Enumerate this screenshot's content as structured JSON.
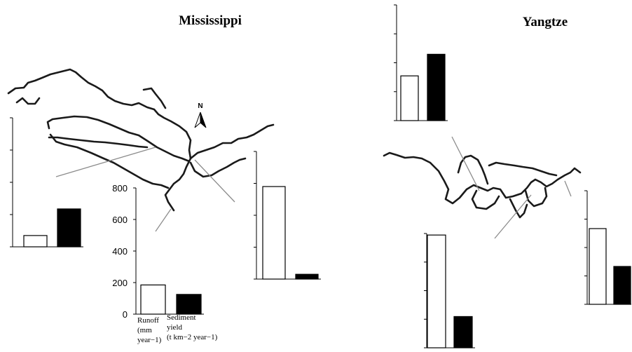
{
  "titles": {
    "left": "Mississippi",
    "right": "Yangtze"
  },
  "compass_label": "N",
  "legend_labels": {
    "runoff": [
      "Runoff",
      "(mm",
      "year−1)"
    ],
    "sediment": [
      "Sediment",
      "yield",
      "(t km−2 year−1)"
    ]
  },
  "chart_data": [
    {
      "id": "mississippi-main",
      "type": "bar",
      "river": "Mississippi",
      "categories": [
        "Runoff (mm year−1)",
        "Sediment yield (t km−2 year−1)"
      ],
      "values": [
        185,
        125
      ],
      "yticks": [
        0,
        200,
        400,
        600,
        800
      ],
      "ylim": [
        0,
        800
      ]
    },
    {
      "id": "mississippi-upper",
      "type": "bar",
      "river": "Mississippi",
      "categories": [
        "Runoff",
        "Sediment yield"
      ],
      "values": [
        70,
        235
      ],
      "ylim": [
        0,
        800
      ]
    },
    {
      "id": "mississippi-east",
      "type": "bar",
      "river": "Mississippi",
      "categories": [
        "Runoff",
        "Sediment yield"
      ],
      "values": [
        580,
        30
      ],
      "ylim": [
        0,
        800
      ]
    },
    {
      "id": "yangtze-upper",
      "type": "bar",
      "river": "Yangtze",
      "categories": [
        "Runoff",
        "Sediment yield"
      ],
      "values": [
        580,
        860
      ],
      "ylim": [
        0,
        1500
      ]
    },
    {
      "id": "yangtze-middle",
      "type": "bar",
      "river": "Yangtze",
      "categories": [
        "Runoff",
        "Sediment yield"
      ],
      "values": [
        1480,
        410
      ],
      "ylim": [
        0,
        1500
      ]
    },
    {
      "id": "yangtze-lower",
      "type": "bar",
      "river": "Yangtze",
      "categories": [
        "Runoff",
        "Sediment yield"
      ],
      "values": [
        1000,
        500
      ],
      "ylim": [
        0,
        1500
      ]
    }
  ]
}
